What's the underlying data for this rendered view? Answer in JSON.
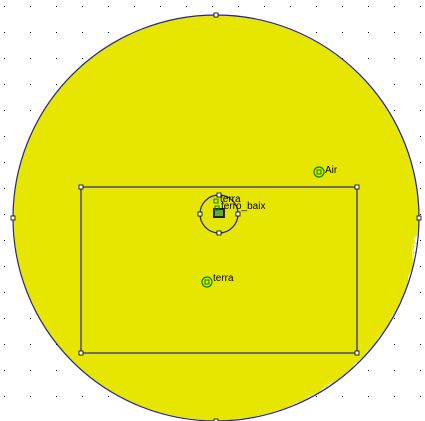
{
  "colors": {
    "background": "#ffffff",
    "grid_dot": "#000000",
    "mesh": "#e6e600",
    "mesh_node": "#c8c800",
    "boundary": "#2222aa",
    "label_marker": "#008800",
    "label_text": "#000000"
  },
  "block_labels": [
    {
      "id": "air",
      "text": "Air"
    },
    {
      "id": "terra-inner",
      "text": "terra"
    },
    {
      "id": "ferro-baix",
      "text": "ferro_baix"
    },
    {
      "id": "terra-outer",
      "text": "terra"
    }
  ]
}
